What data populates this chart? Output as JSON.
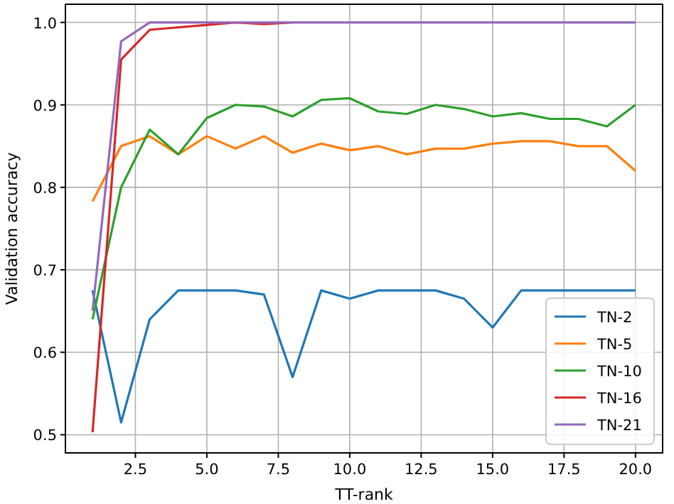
{
  "chart_data": {
    "type": "line",
    "xlabel": "TT-rank",
    "ylabel": "Validation accuracy",
    "x": [
      1,
      2,
      3,
      4,
      5,
      6,
      7,
      8,
      9,
      10,
      11,
      12,
      13,
      14,
      15,
      16,
      17,
      18,
      19,
      20
    ],
    "xlim": [
      0.05,
      20.95
    ],
    "xticks": [
      {
        "value": 2.5,
        "label": "2.5"
      },
      {
        "value": 5,
        "label": "5.0"
      },
      {
        "value": 7.5,
        "label": "7.5"
      },
      {
        "value": 10,
        "label": "10.0"
      },
      {
        "value": 12.5,
        "label": "12.5"
      },
      {
        "value": 15,
        "label": "15.0"
      },
      {
        "value": 17.5,
        "label": "17.5"
      },
      {
        "value": 20,
        "label": "20.0"
      }
    ],
    "ylim": [
      0.478,
      1.022
    ],
    "yticks": [
      0.5,
      0.6,
      0.7,
      0.8,
      0.9,
      {
        "value": 1,
        "label": "1.0"
      }
    ],
    "grid": true,
    "legend": "bottom right",
    "line_style": "solid",
    "series": [
      {
        "name": "TN-2",
        "color": "#1f77b4",
        "values": [
          0.675,
          0.515,
          0.64,
          0.675,
          0.675,
          0.675,
          0.67,
          0.57,
          0.675,
          0.665,
          0.675,
          0.675,
          0.675,
          0.665,
          0.63,
          0.675,
          0.675,
          0.675,
          0.675,
          0.675
        ]
      },
      {
        "name": "TN-5",
        "color": "#ff7f0e",
        "values": [
          0.783,
          0.85,
          0.862,
          0.84,
          0.862,
          0.847,
          0.862,
          0.842,
          0.853,
          0.845,
          0.85,
          0.84,
          0.847,
          0.847,
          0.853,
          0.856,
          0.856,
          0.85,
          0.85,
          0.82
        ]
      },
      {
        "name": "TN-10",
        "color": "#2ca02c",
        "values": [
          0.64,
          0.8,
          0.87,
          0.84,
          0.884,
          0.9,
          0.898,
          0.886,
          0.906,
          0.908,
          0.892,
          0.889,
          0.9,
          0.895,
          0.886,
          0.89,
          0.883,
          0.883,
          0.874,
          0.9
        ]
      },
      {
        "name": "TN-16",
        "color": "#d62728",
        "values": [
          0.503,
          0.955,
          0.991,
          0.994,
          0.997,
          1.0,
          0.998,
          1.0,
          null,
          null,
          null,
          null,
          null,
          null,
          null,
          null,
          null,
          null,
          null,
          null
        ]
      },
      {
        "name": "TN-21",
        "color": "#9467bd",
        "values": [
          0.65,
          0.977,
          1.0,
          1.0,
          1.0,
          1.0,
          1.0,
          1.0,
          1.0,
          1.0,
          1.0,
          1.0,
          1.0,
          1.0,
          1.0,
          1.0,
          1.0,
          1.0,
          1.0,
          1.0
        ]
      }
    ]
  }
}
